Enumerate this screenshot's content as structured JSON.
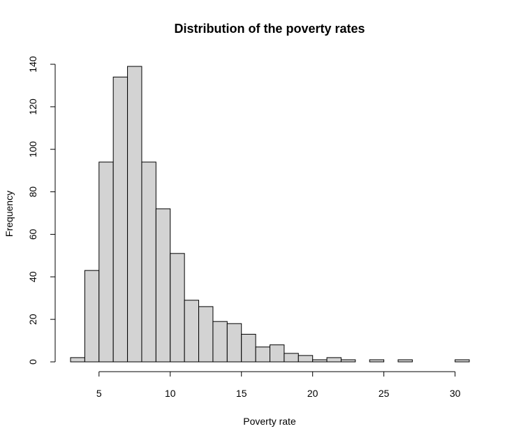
{
  "chart_data": {
    "type": "bar",
    "title": "Distribution of the poverty rates",
    "xlabel": "Poverty rate",
    "ylabel": "Frequency",
    "x_ticks": [
      5,
      10,
      15,
      20,
      25,
      30
    ],
    "y_ticks": [
      0,
      20,
      40,
      60,
      80,
      100,
      120,
      140
    ],
    "xlim": [
      3,
      31
    ],
    "ylim": [
      0,
      140
    ],
    "bin_width": 1,
    "bins": [
      {
        "start": 3,
        "end": 4,
        "count": 2
      },
      {
        "start": 4,
        "end": 5,
        "count": 43
      },
      {
        "start": 5,
        "end": 6,
        "count": 94
      },
      {
        "start": 6,
        "end": 7,
        "count": 134
      },
      {
        "start": 7,
        "end": 8,
        "count": 139
      },
      {
        "start": 8,
        "end": 9,
        "count": 94
      },
      {
        "start": 9,
        "end": 10,
        "count": 72
      },
      {
        "start": 10,
        "end": 11,
        "count": 51
      },
      {
        "start": 11,
        "end": 12,
        "count": 29
      },
      {
        "start": 12,
        "end": 13,
        "count": 26
      },
      {
        "start": 13,
        "end": 14,
        "count": 19
      },
      {
        "start": 14,
        "end": 15,
        "count": 18
      },
      {
        "start": 15,
        "end": 16,
        "count": 13
      },
      {
        "start": 16,
        "end": 17,
        "count": 7
      },
      {
        "start": 17,
        "end": 18,
        "count": 8
      },
      {
        "start": 18,
        "end": 19,
        "count": 4
      },
      {
        "start": 19,
        "end": 20,
        "count": 3
      },
      {
        "start": 20,
        "end": 21,
        "count": 1
      },
      {
        "start": 21,
        "end": 22,
        "count": 2
      },
      {
        "start": 22,
        "end": 23,
        "count": 1
      },
      {
        "start": 23,
        "end": 24,
        "count": 0
      },
      {
        "start": 24,
        "end": 25,
        "count": 1
      },
      {
        "start": 25,
        "end": 26,
        "count": 0
      },
      {
        "start": 26,
        "end": 27,
        "count": 1
      },
      {
        "start": 27,
        "end": 28,
        "count": 0
      },
      {
        "start": 28,
        "end": 29,
        "count": 0
      },
      {
        "start": 29,
        "end": 30,
        "count": 0
      },
      {
        "start": 30,
        "end": 31,
        "count": 1
      }
    ],
    "bar_fill": "#d3d3d3",
    "bar_stroke": "#000000",
    "grid": false,
    "legend": "none"
  }
}
